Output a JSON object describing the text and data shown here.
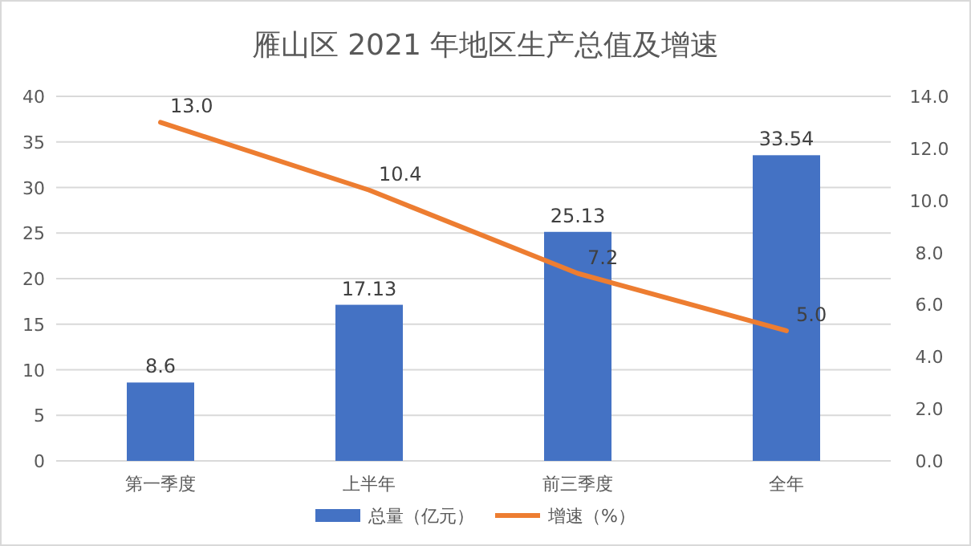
{
  "chart_data": {
    "type": "bar",
    "title": "雁山区 2021 年地区生产总值及增速",
    "categories": [
      "第一季度",
      "上半年",
      "前三季度",
      "全年"
    ],
    "series": [
      {
        "name": "总量（亿元）",
        "color": "#4472c4",
        "values": [
          8.6,
          17.13,
          25.13,
          33.54
        ],
        "value_labels": [
          "8.6",
          "17.13",
          "25.13",
          "33.54"
        ]
      },
      {
        "name": "增速（%）",
        "type": "line",
        "axis": "y2",
        "color": "#ed7d31",
        "values": [
          13.0,
          10.4,
          7.2,
          5.0
        ],
        "value_labels": [
          "13.0",
          "10.4",
          "7.2",
          "5.0"
        ]
      }
    ],
    "ylim": [
      0,
      40
    ],
    "yticks": [
      0,
      5,
      10,
      15,
      20,
      25,
      30,
      35,
      40
    ],
    "y2lim": [
      0,
      14
    ],
    "y2ticks": [
      {
        "value": 0,
        "label": "0.0"
      },
      {
        "value": 2,
        "label": "2.0"
      },
      {
        "value": 4,
        "label": "4.0"
      },
      {
        "value": 6,
        "label": "6.0"
      },
      {
        "value": 8,
        "label": "8.0"
      },
      {
        "value": 10,
        "label": "10.0"
      },
      {
        "value": 12,
        "label": "12.0"
      },
      {
        "value": 14,
        "label": "14.0"
      }
    ],
    "grid": "y",
    "legend": "bottom"
  }
}
